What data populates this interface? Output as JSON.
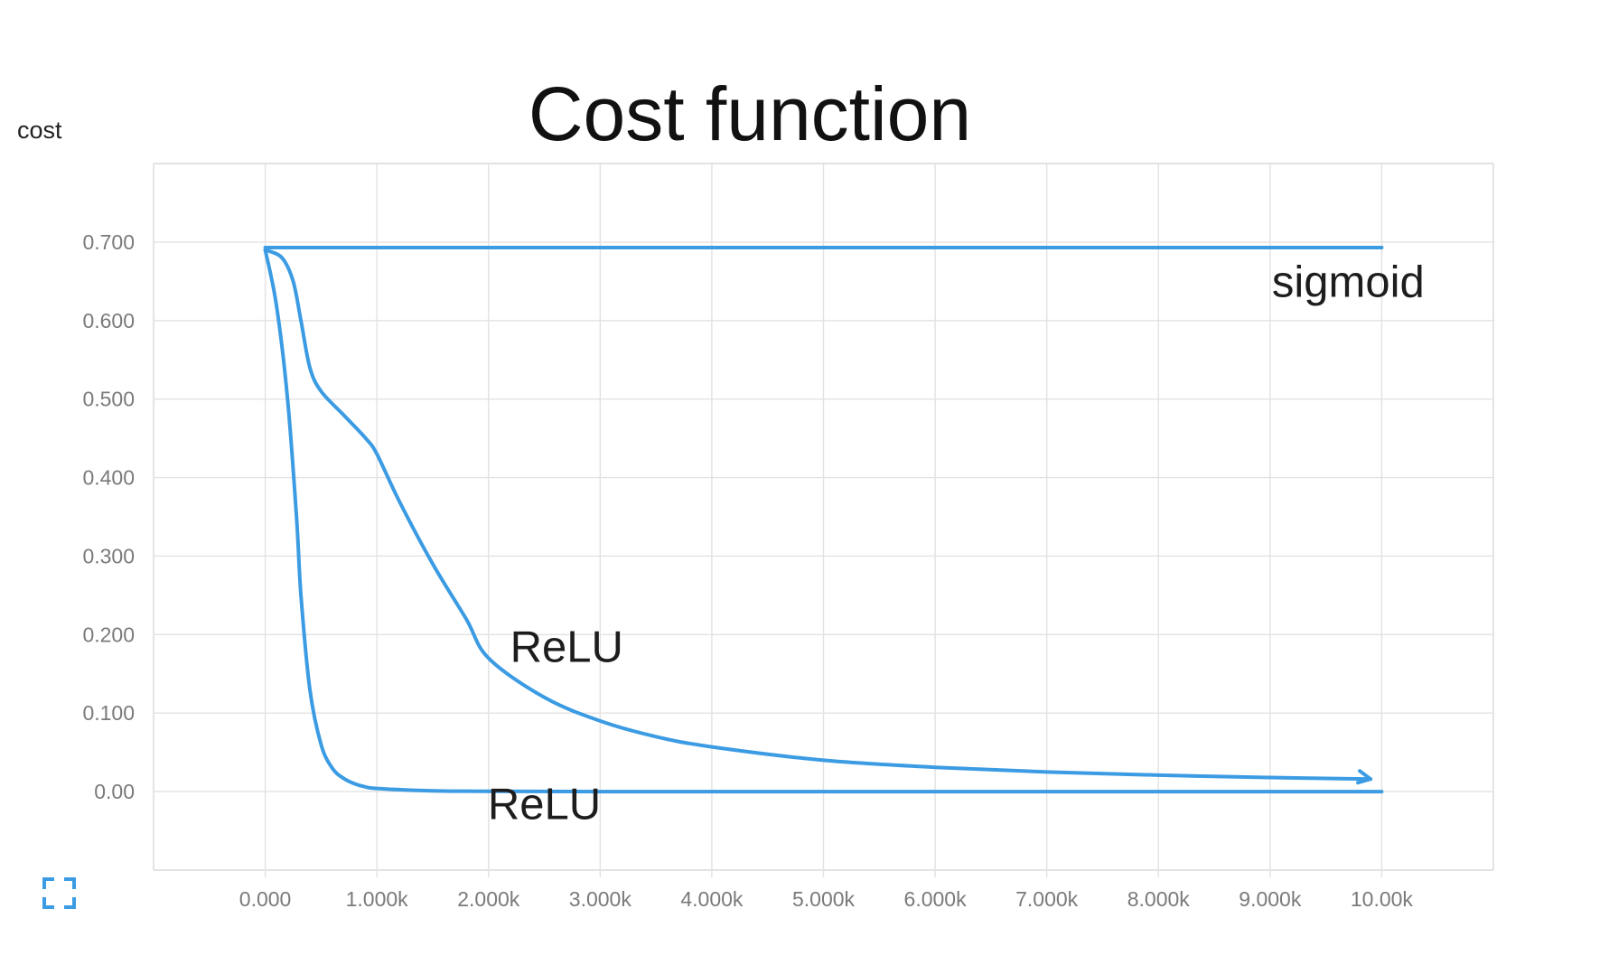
{
  "chart_data": {
    "type": "line",
    "title": "Cost function",
    "ylabel": "cost",
    "xlabel": "",
    "x_ticks": [
      0,
      1000,
      2000,
      3000,
      4000,
      5000,
      6000,
      7000,
      8000,
      9000,
      10000
    ],
    "x_tick_labels": [
      "0.000",
      "1.000k",
      "2.000k",
      "3.000k",
      "4.000k",
      "5.000k",
      "6.000k",
      "7.000k",
      "8.000k",
      "9.000k",
      "10.00k"
    ],
    "y_ticks": [
      0,
      0.1,
      0.2,
      0.3,
      0.4,
      0.5,
      0.6,
      0.7
    ],
    "y_tick_labels": [
      "0.00",
      "0.100",
      "0.200",
      "0.300",
      "0.400",
      "0.500",
      "0.600",
      "0.700"
    ],
    "xlim": [
      -1000,
      11000
    ],
    "ylim": [
      -0.1,
      0.8
    ],
    "grid": true,
    "legend": "none",
    "colors": {
      "line": "#3b9be3"
    },
    "series": [
      {
        "label": "sigmoid",
        "x": [
          0,
          1000,
          2000,
          3000,
          4000,
          5000,
          6000,
          7000,
          8000,
          9000,
          10000
        ],
        "y": [
          0.693,
          0.693,
          0.693,
          0.693,
          0.693,
          0.693,
          0.693,
          0.693,
          0.693,
          0.693,
          0.693
        ]
      },
      {
        "label": "ReLU",
        "x": [
          0,
          150,
          250,
          320,
          400,
          500,
          700,
          900,
          1000,
          1200,
          1500,
          1800,
          2000,
          2500,
          3000,
          3500,
          4000,
          5000,
          6000,
          7000,
          8000,
          9000,
          9900
        ],
        "y": [
          0.69,
          0.68,
          0.65,
          0.6,
          0.54,
          0.51,
          0.48,
          0.45,
          0.43,
          0.37,
          0.29,
          0.22,
          0.17,
          0.12,
          0.09,
          0.07,
          0.057,
          0.04,
          0.031,
          0.025,
          0.021,
          0.018,
          0.016
        ]
      },
      {
        "label": "ReLU",
        "x": [
          0,
          100,
          200,
          280,
          320,
          400,
          500,
          600,
          700,
          800,
          900,
          1000,
          1500,
          2000,
          3000,
          5000,
          10000
        ],
        "y": [
          0.69,
          0.62,
          0.5,
          0.35,
          0.25,
          0.13,
          0.06,
          0.03,
          0.017,
          0.01,
          0.006,
          0.004,
          0.001,
          0.0005,
          0.0,
          0.0,
          0.0
        ]
      }
    ],
    "annotations": [
      {
        "text": "sigmoid",
        "x": 9700,
        "y": 0.63
      },
      {
        "text": "ReLU",
        "x": 2700,
        "y": 0.165
      },
      {
        "text": "ReLU",
        "x": 2500,
        "y": -0.035
      }
    ]
  },
  "icons": {
    "expand": "expand-icon"
  }
}
